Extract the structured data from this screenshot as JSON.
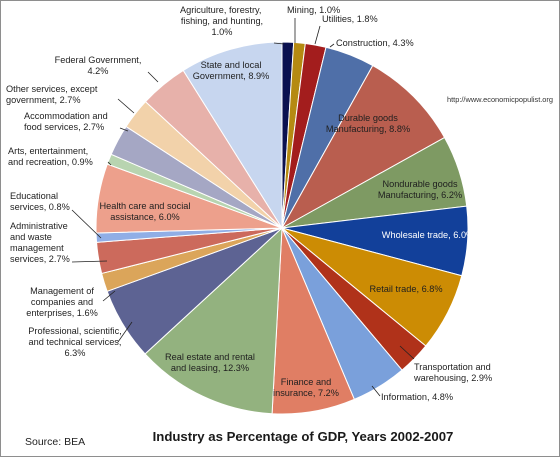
{
  "chart_data": {
    "type": "pie",
    "title": "Industry as Percentage of GDP, Years 2002-2007",
    "source": "Source:  BEA",
    "url": "http://www.economicpopulist.org",
    "slices": [
      {
        "label": "Agriculture, forestry, fishing, and hunting, 1.0%",
        "value": 1.0,
        "color": "#0b1150"
      },
      {
        "label": "Mining, 1.0%",
        "value": 1.0,
        "color": "#b58a12"
      },
      {
        "label": "Utilities, 1.8%",
        "value": 1.8,
        "color": "#a31d1d"
      },
      {
        "label": "Construction, 4.3%",
        "value": 4.3,
        "color": "#4f6fa8"
      },
      {
        "label": "Durable goods Manufacturing, 8.8%",
        "value": 8.8,
        "color": "#b95e4f"
      },
      {
        "label": "Nondurable goods Manufacturing, 6.2%",
        "value": 6.2,
        "color": "#7e9a63"
      },
      {
        "label": "Wholesale trade, 6.0%",
        "value": 6.0,
        "color": "#12409a"
      },
      {
        "label": "Retail trade, 6.8%",
        "value": 6.8,
        "color": "#cc8c04"
      },
      {
        "label": "Transportation and warehousing, 2.9%",
        "value": 2.9,
        "color": "#b0321a"
      },
      {
        "label": "Information, 4.8%",
        "value": 4.8,
        "color": "#7aa0db"
      },
      {
        "label": "Finance and insurance, 7.2%",
        "value": 7.2,
        "color": "#e07e64"
      },
      {
        "label": "Real estate and rental and leasing, 12.3%",
        "value": 12.3,
        "color": "#93b27f"
      },
      {
        "label": "Professional, scientific, and technical services, 6.3%",
        "value": 6.3,
        "color": "#5d6393"
      },
      {
        "label": "Management of companies and enterprises, 1.6%",
        "value": 1.6,
        "color": "#dba55a"
      },
      {
        "label": "Administrative and waste management services, 2.7%",
        "value": 2.7,
        "color": "#cc6a5c"
      },
      {
        "label": "Educational services, 0.8%",
        "value": 0.8,
        "color": "#90aee6"
      },
      {
        "label": "Health care and social assistance, 6.0%",
        "value": 6.0,
        "color": "#eda08c"
      },
      {
        "label": "Arts, entertainment, and recreation, 0.9%",
        "value": 0.9,
        "color": "#b8d4b0"
      },
      {
        "label": "Accommodation and food services, 2.7%",
        "value": 2.7,
        "color": "#a5a7c4"
      },
      {
        "label": "Other services, except government, 2.7%",
        "value": 2.7,
        "color": "#f2d2aa"
      },
      {
        "label": "Federal Government, 4.2%",
        "value": 4.2,
        "color": "#e7b1aa"
      },
      {
        "label": "State and local Government, 8.9%",
        "value": 8.9,
        "color": "#c7d6ef"
      }
    ]
  }
}
